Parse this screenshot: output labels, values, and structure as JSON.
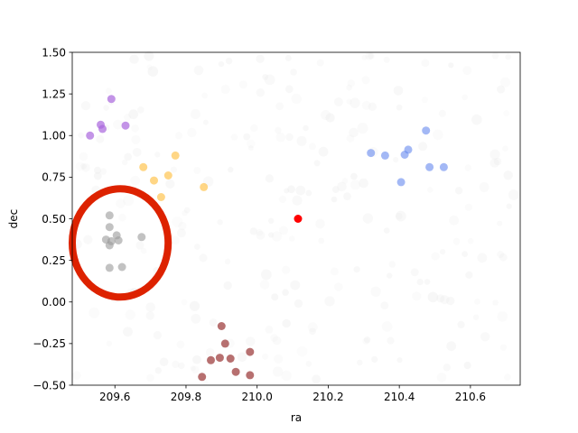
{
  "chart_data": {
    "type": "scatter",
    "title": "",
    "xlabel": "ra",
    "ylabel": "dec",
    "xlim": [
      209.48,
      210.74
    ],
    "ylim": [
      -0.5,
      1.5
    ],
    "xticks": [
      209.6,
      209.8,
      210.0,
      210.2,
      210.4,
      210.6
    ],
    "xtick_labels": [
      "209.6",
      "209.8",
      "210.0",
      "210.2",
      "210.4",
      "210.6"
    ],
    "yticks": [
      -0.5,
      -0.25,
      0.0,
      0.25,
      0.5,
      0.75,
      1.0,
      1.25,
      1.5
    ],
    "ytick_labels": [
      "−0.50",
      "−0.25",
      "0.00",
      "0.25",
      "0.50",
      "0.75",
      "1.00",
      "1.25",
      "1.50"
    ],
    "grid": false,
    "background_noise": true,
    "series": [
      {
        "color": "#aa66dd",
        "alpha": 0.7,
        "points": [
          [
            209.53,
            1.0
          ],
          [
            209.56,
            1.065
          ],
          [
            209.565,
            1.04
          ],
          [
            209.59,
            1.22
          ],
          [
            209.63,
            1.06
          ]
        ]
      },
      {
        "color": "#ffbb33",
        "alpha": 0.6,
        "points": [
          [
            209.68,
            0.81
          ],
          [
            209.71,
            0.73
          ],
          [
            209.73,
            0.63
          ],
          [
            209.75,
            0.76
          ],
          [
            209.77,
            0.88
          ],
          [
            209.85,
            0.69
          ]
        ]
      },
      {
        "color": "#999999",
        "alpha": 0.6,
        "points": [
          [
            209.585,
            0.52
          ],
          [
            209.585,
            0.45
          ],
          [
            209.605,
            0.4
          ],
          [
            209.575,
            0.375
          ],
          [
            209.59,
            0.365
          ],
          [
            209.61,
            0.37
          ],
          [
            209.585,
            0.34
          ],
          [
            209.675,
            0.39
          ],
          [
            209.585,
            0.205
          ],
          [
            209.62,
            0.21
          ]
        ]
      },
      {
        "color": "#6688ee",
        "alpha": 0.6,
        "points": [
          [
            210.32,
            0.895
          ],
          [
            210.36,
            0.88
          ],
          [
            210.405,
            0.72
          ],
          [
            210.415,
            0.885
          ],
          [
            210.425,
            0.915
          ],
          [
            210.475,
            1.03
          ],
          [
            210.485,
            0.81
          ],
          [
            210.525,
            0.81
          ]
        ]
      },
      {
        "color": "#993333",
        "alpha": 0.7,
        "points": [
          [
            209.9,
            -0.145
          ],
          [
            209.91,
            -0.25
          ],
          [
            209.845,
            -0.45
          ],
          [
            209.87,
            -0.35
          ],
          [
            209.895,
            -0.335
          ],
          [
            209.925,
            -0.34
          ],
          [
            209.94,
            -0.42
          ],
          [
            209.98,
            -0.3
          ],
          [
            209.98,
            -0.44
          ]
        ]
      },
      {
        "color": "#ff0000",
        "alpha": 1.0,
        "points": [
          [
            210.115,
            0.5
          ]
        ]
      }
    ],
    "annotations": [
      {
        "type": "ellipse",
        "color": "#dd2200",
        "center": [
          209.615,
          0.355
        ],
        "ra_radius": 0.135,
        "dec_radius": 0.325
      }
    ]
  }
}
